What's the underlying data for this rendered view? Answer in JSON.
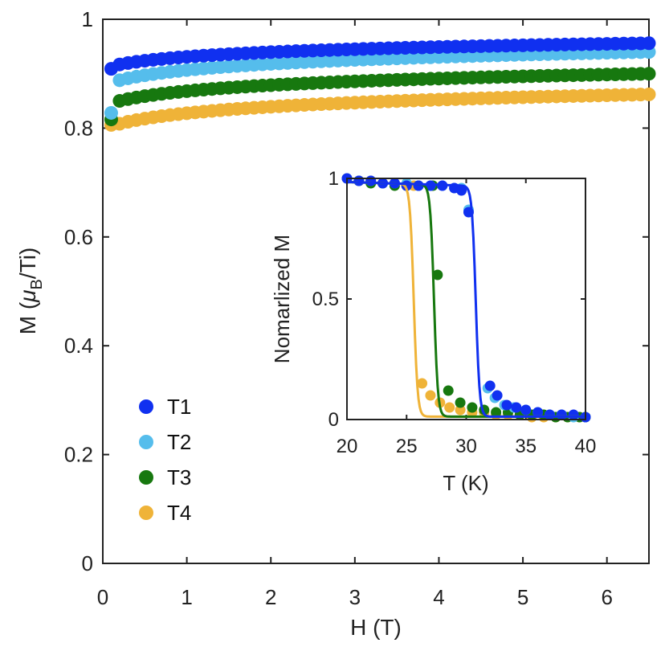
{
  "chart_data": {
    "main": {
      "type": "scatter",
      "xlabel": "H (T)",
      "ylabel_prefix": "M (",
      "ylabel_mu": "μ",
      "ylabel_sub": "B",
      "ylabel_suffix": "/Ti)",
      "xlim": [
        0,
        6.5
      ],
      "ylim": [
        0,
        1
      ],
      "xticks": [
        0,
        1,
        2,
        3,
        4,
        5,
        6
      ],
      "yticks": [
        0,
        0.2,
        0.4,
        0.6,
        0.8,
        1
      ],
      "xtick_labels": [
        "0",
        "1",
        "2",
        "3",
        "4",
        "5",
        "6"
      ],
      "ytick_labels": [
        "0",
        "0.2",
        "0.4",
        "0.6",
        "0.8",
        "1"
      ],
      "legend_position": "lower-left",
      "series": [
        {
          "name": "T1",
          "color": "#1030f0",
          "y_start": 0.909,
          "y_first": 0.917,
          "y_end": 0.956
        },
        {
          "name": "T2",
          "color": "#55bdec",
          "y_start": 0.828,
          "y_first": 0.888,
          "y_end": 0.94
        },
        {
          "name": "T3",
          "color": "#17780f",
          "y_start": 0.816,
          "y_first": 0.85,
          "y_end": 0.9
        },
        {
          "name": "T4",
          "color": "#efb338",
          "y_start": 0.806,
          "y_first": 0.808,
          "y_end": 0.862
        }
      ]
    },
    "inset": {
      "type": "scatter",
      "xlabel": "T (K)",
      "ylabel": "Nomarlized M",
      "xlim": [
        20,
        40
      ],
      "ylim": [
        0,
        1
      ],
      "xticks": [
        20,
        25,
        30,
        35,
        40
      ],
      "yticks": [
        0,
        0.5,
        1
      ],
      "xtick_labels": [
        "20",
        "25",
        "30",
        "35",
        "40"
      ],
      "ytick_labels": [
        "0",
        "0.5",
        "1"
      ],
      "series": [
        {
          "name": "T1",
          "color": "#1030f0",
          "Tc": 30.8,
          "x": [
            20.0,
            21.0,
            22.0,
            23.0,
            24.0,
            25.0,
            26.0,
            27.0,
            28.0,
            29.0,
            29.6,
            30.2,
            32.0,
            32.6,
            33.4,
            34.2,
            35.0,
            36.0,
            37.0,
            38.0,
            39.0,
            40.0
          ],
          "y": [
            1.0,
            0.99,
            0.99,
            0.98,
            0.98,
            0.97,
            0.97,
            0.97,
            0.97,
            0.96,
            0.95,
            0.86,
            0.14,
            0.1,
            0.06,
            0.05,
            0.04,
            0.03,
            0.02,
            0.02,
            0.02,
            0.01
          ]
        },
        {
          "name": "T2",
          "color": "#55bdec",
          "Tc": 30.8,
          "x": [
            20.0,
            21.0,
            22.0,
            23.0,
            24.0,
            25.0,
            26.0,
            27.0,
            28.0,
            29.0,
            29.6,
            30.2,
            31.8,
            32.4,
            33.2,
            34.0,
            35.0,
            36.0,
            37.0,
            38.0,
            39.0,
            40.0
          ],
          "y": [
            1.0,
            0.99,
            0.99,
            0.98,
            0.98,
            0.98,
            0.97,
            0.97,
            0.97,
            0.96,
            0.96,
            0.87,
            0.13,
            0.09,
            0.06,
            0.05,
            0.04,
            0.03,
            0.02,
            0.02,
            0.01,
            0.01
          ]
        },
        {
          "name": "T3",
          "color": "#17780f",
          "Tc": 27.3,
          "x": [
            21.0,
            22.0,
            23.0,
            24.0,
            25.0,
            26.0,
            27.2,
            27.6,
            28.5,
            29.5,
            30.5,
            31.5,
            32.5,
            33.5,
            34.5,
            35.5,
            36.5,
            37.5,
            38.5,
            39.5,
            40.0
          ],
          "y": [
            0.99,
            0.98,
            0.98,
            0.97,
            0.97,
            0.97,
            0.97,
            0.6,
            0.12,
            0.07,
            0.05,
            0.04,
            0.03,
            0.03,
            0.02,
            0.02,
            0.02,
            0.01,
            0.01,
            0.01,
            0.01
          ]
        },
        {
          "name": "T4",
          "color": "#efb338",
          "Tc": 25.6,
          "x": [
            20.0,
            21.0,
            22.0,
            23.0,
            24.0,
            25.0,
            25.6,
            26.3,
            27.0,
            27.8,
            28.6,
            29.5,
            30.5,
            31.5,
            32.5,
            33.5,
            34.5,
            35.5,
            36.5,
            37.5,
            38.5,
            39.5,
            40.0
          ],
          "y": [
            1.0,
            0.99,
            0.99,
            0.98,
            0.98,
            0.97,
            0.97,
            0.15,
            0.1,
            0.07,
            0.05,
            0.04,
            0.03,
            0.03,
            0.02,
            0.02,
            0.02,
            0.01,
            0.01,
            0.01,
            0.01,
            0.01,
            0.01
          ]
        }
      ]
    }
  }
}
